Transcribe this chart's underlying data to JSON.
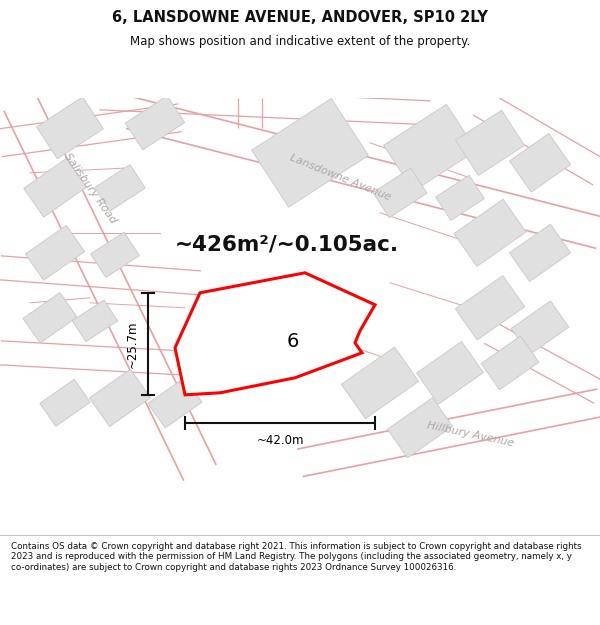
{
  "title": "6, LANSDOWNE AVENUE, ANDOVER, SP10 2LY",
  "subtitle": "Map shows position and indicative extent of the property.",
  "area_text": "~426m²/~0.105ac.",
  "width_label": "~42.0m",
  "height_label": "~25.7m",
  "property_label": "6",
  "footer": "Contains OS data © Crown copyright and database right 2021. This information is subject to Crown copyright and database rights 2023 and is reproduced with the permission of HM Land Registry. The polygons (including the associated geometry, namely x, y co-ordinates) are subject to Crown copyright and database rights 2023 Ordnance Survey 100026316.",
  "bg_color": "#ffffff",
  "map_bg": "#f8f8f8",
  "road_line_color": "#e8a0a0",
  "road_outline_color": "#d0c8c8",
  "building_fill": "#e0e0e0",
  "building_edge": "#c8c8c8",
  "plot_color": "#ff0000",
  "plot_fill": "#ffffff",
  "dim_color": "#111111",
  "street_label_color": "#b0a8a8",
  "area_text_color": "#111111"
}
